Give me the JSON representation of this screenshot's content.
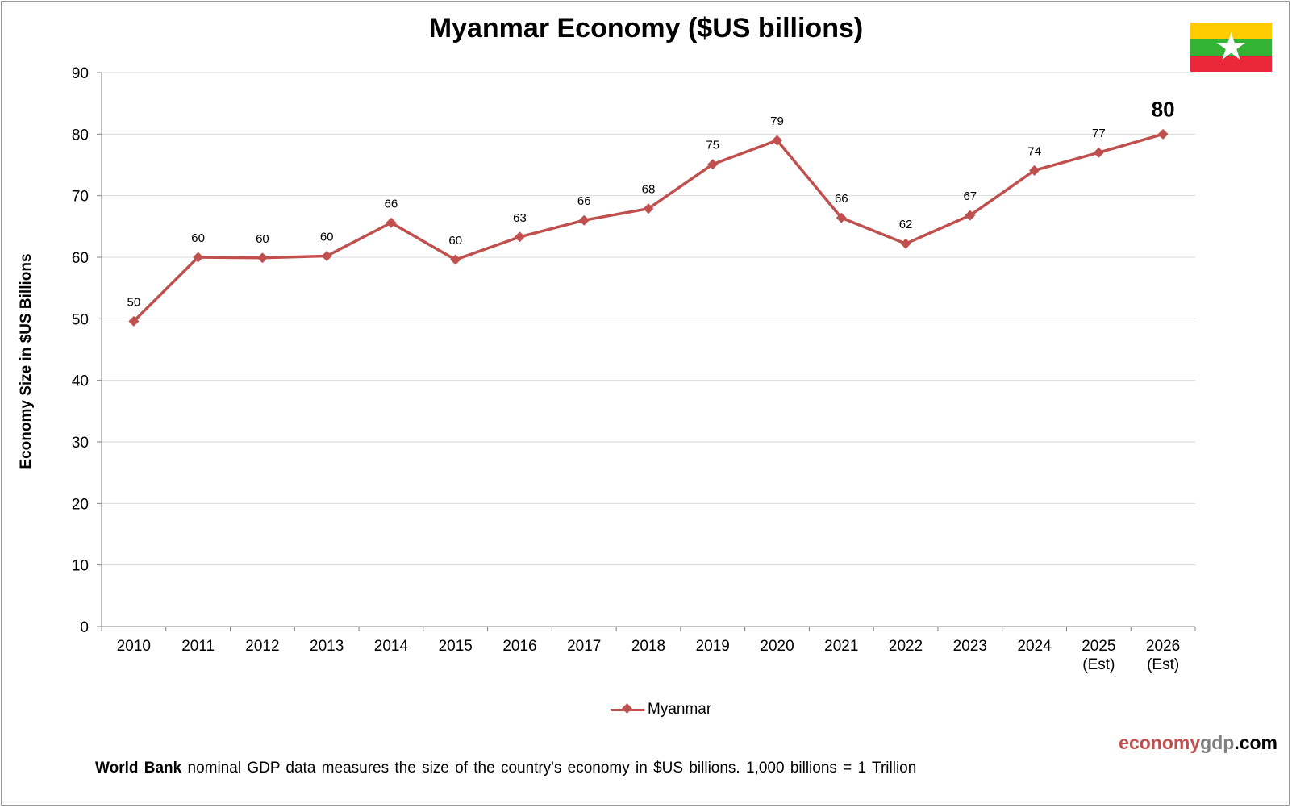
{
  "page": {
    "title": "Myanmar Economy ($US billions)",
    "brand": {
      "part1": "economy",
      "part2": "gdp",
      "part3": ".com"
    },
    "footnote": {
      "bold": "World Bank",
      "text": " nominal GDP data  measures the size of the country's economy in $US billions.  1,000 billions = 1 Trillion"
    },
    "flag_icon": "myanmar-flag-icon",
    "flag_colors": [
      "#FECB00",
      "#34B233",
      "#EA2839"
    ]
  },
  "chart_data": {
    "type": "line",
    "title": "Myanmar Economy ($US billions)",
    "xlabel": "",
    "ylabel": "Economy Size in $US Billions",
    "ylim": [
      0,
      90
    ],
    "yticks": [
      0,
      10,
      20,
      30,
      40,
      50,
      60,
      70,
      80,
      90
    ],
    "grid": true,
    "legend_position": "bottom-center",
    "categories": [
      [
        "2010"
      ],
      [
        "2011"
      ],
      [
        "2012"
      ],
      [
        "2013"
      ],
      [
        "2014"
      ],
      [
        "2015"
      ],
      [
        "2016"
      ],
      [
        "2017"
      ],
      [
        "2018"
      ],
      [
        "2019"
      ],
      [
        "2020"
      ],
      [
        "2021"
      ],
      [
        "2022"
      ],
      [
        "2023"
      ],
      [
        "2024"
      ],
      [
        "2025",
        "(Est)"
      ],
      [
        "2026",
        "(Est)"
      ]
    ],
    "series": [
      {
        "name": "Myanmar",
        "color": "#C0504D",
        "values": [
          49.6,
          60.0,
          59.9,
          60.2,
          65.6,
          59.6,
          63.3,
          66.0,
          67.9,
          75.1,
          79.0,
          66.4,
          62.2,
          66.8,
          74.1,
          77.0,
          80.0
        ],
        "labels": [
          "50",
          "60",
          "60",
          "60",
          "66",
          "60",
          "63",
          "66",
          "68",
          "75",
          "79",
          "66",
          "62",
          "67",
          "74",
          "77",
          "80"
        ]
      }
    ]
  }
}
